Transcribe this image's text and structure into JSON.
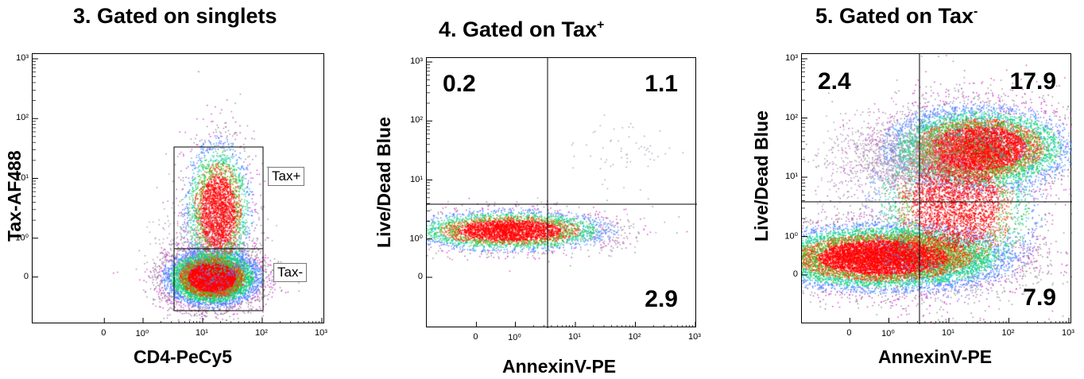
{
  "chart_data": [
    {
      "type": "scatter",
      "title": "3. Gated on singlets",
      "xlabel": "CD4-PeCy5",
      "ylabel": "Tax-AF488",
      "x_ticks": [
        "0",
        "10⁰",
        "10¹",
        "10²",
        "10³"
      ],
      "y_ticks": [
        "0",
        "10⁰",
        "10¹",
        "10²",
        "10³"
      ],
      "gates": [
        {
          "label": "Tax+"
        },
        {
          "label": "Tax-"
        }
      ],
      "populations": [
        {
          "x": 1.15,
          "y": 0.35,
          "density": "high"
        },
        {
          "x": 1.2,
          "y": 1.45,
          "density": "medium"
        }
      ]
    },
    {
      "type": "scatter",
      "title": "4. Gated on Tax",
      "title_sup": "+",
      "xlabel": "AnnexinV-PE",
      "ylabel": "Live/Dead Blue",
      "x_ticks": [
        "0",
        "10⁰",
        "10¹",
        "10²",
        "10³"
      ],
      "y_ticks": [
        "0",
        "10⁰",
        "10¹",
        "10²",
        "10³"
      ],
      "quadrants": {
        "upper_left": "0.2",
        "upper_right": "1.1",
        "lower_right": "2.9"
      },
      "populations": [
        {
          "x": 0.3,
          "y": 1.2,
          "density": "high"
        },
        {
          "x": 1.7,
          "y": 2.7,
          "density": "sparse"
        }
      ]
    },
    {
      "type": "scatter",
      "title": "5. Gated on Tax",
      "title_sup": "-",
      "xlabel": "AnnexinV-PE",
      "ylabel": "Live/Dead Blue",
      "x_ticks": [
        "0",
        "10⁰",
        "10¹",
        "10²",
        "10³"
      ],
      "y_ticks": [
        "0",
        "10⁰",
        "10¹",
        "10²",
        "10³"
      ],
      "quadrants": {
        "upper_left": "2.4",
        "upper_right": "17.9",
        "lower_right": "7.9"
      },
      "populations": [
        {
          "x": 0.4,
          "y": 0.8,
          "density": "high"
        },
        {
          "x": 2.2,
          "y": 2.5,
          "density": "high"
        },
        {
          "x": 2.0,
          "y": 1.7,
          "density": "medium"
        }
      ]
    }
  ]
}
